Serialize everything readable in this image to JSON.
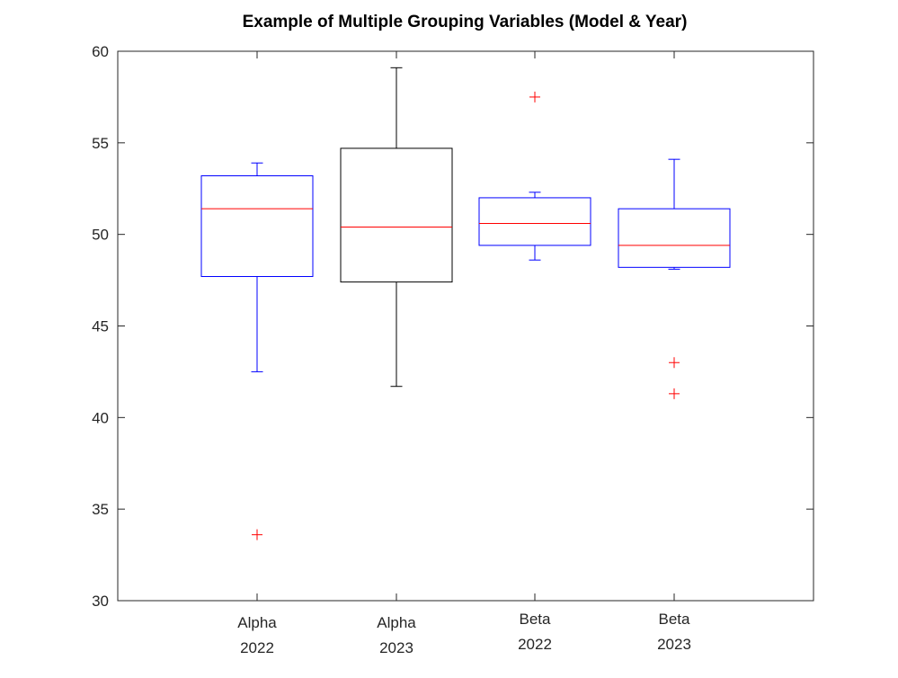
{
  "chart_data": {
    "type": "box",
    "title": "Example of Multiple Grouping Variables (Model & Year)",
    "xlabel": "",
    "ylabel": "",
    "ylim": [
      30,
      60
    ],
    "yticks": [
      30,
      35,
      40,
      45,
      50,
      55,
      60
    ],
    "grid": false,
    "groups": [
      {
        "label1": "Alpha",
        "label2": "2022",
        "whisker_low": 42.5,
        "q1": 47.7,
        "median": 51.4,
        "q3": 53.2,
        "whisker_high": 53.9,
        "outliers": [
          33.6
        ],
        "box_color": "#0000ff",
        "outlier_colors": [
          "#ff0000"
        ]
      },
      {
        "label1": "Alpha",
        "label2": "2023",
        "whisker_low": 41.7,
        "q1": 47.4,
        "median": 50.4,
        "q3": 54.7,
        "whisker_high": 59.1,
        "outliers": [],
        "box_color": "#000000",
        "outlier_colors": []
      },
      {
        "label1": "Beta",
        "label2": "2022",
        "whisker_low": 48.6,
        "q1": 49.4,
        "median": 50.6,
        "q3": 52.0,
        "whisker_high": 52.3,
        "outliers": [
          57.5
        ],
        "box_color": "#0000ff",
        "outlier_colors": [
          "#ff0000"
        ]
      },
      {
        "label1": "Beta",
        "label2": "2023",
        "whisker_low": 48.1,
        "q1": 48.2,
        "median": 49.4,
        "q3": 51.4,
        "whisker_high": 54.1,
        "outliers": [
          43.0,
          41.3
        ],
        "box_color": "#0000ff",
        "outlier_colors": [
          "#ff0000",
          "#ff0000"
        ]
      }
    ],
    "median_color": "#ff0000"
  }
}
